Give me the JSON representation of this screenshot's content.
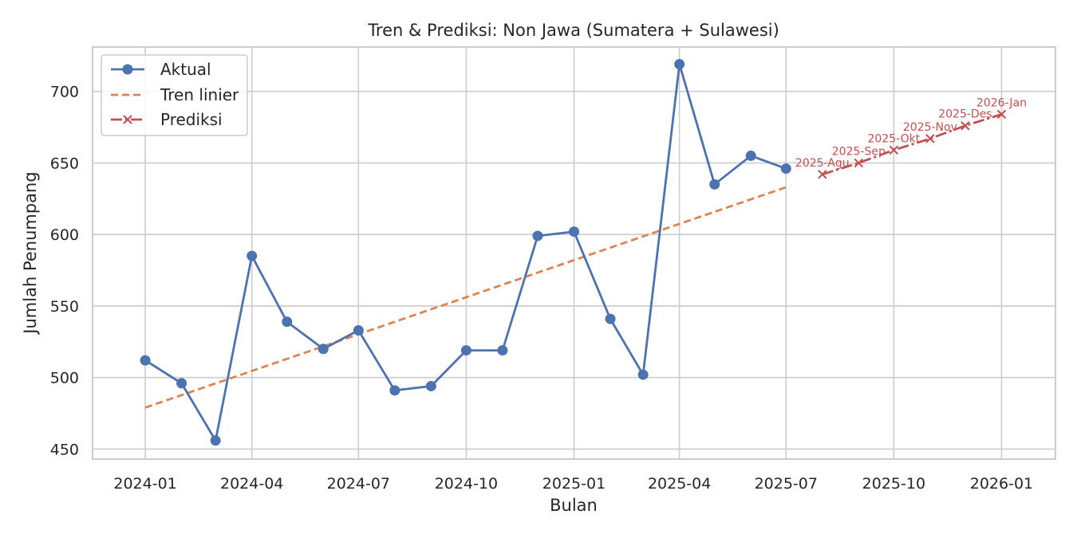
{
  "chart_data": {
    "type": "line",
    "title": "Tren & Prediksi: Non Jawa (Sumatera + Sulawesi)",
    "xlabel": "Bulan",
    "ylabel": "Jumlah Penumpang",
    "x_tick_labels": [
      "2024-01",
      "2024-04",
      "2024-07",
      "2024-10",
      "2025-01",
      "2025-04",
      "2025-07",
      "2025-10",
      "2026-01"
    ],
    "x_range": [
      "2023-11-17",
      "2026-02-16"
    ],
    "ylim": [
      443,
      731
    ],
    "y_ticks": [
      450,
      500,
      550,
      600,
      650,
      700
    ],
    "grid": true,
    "legend_position": "top-left",
    "colors": {
      "actual": "#4c72b0",
      "trend": "#dd8452",
      "prediction": "#c44e52"
    },
    "series": [
      {
        "name": "Aktual",
        "style": "solid-circle",
        "x": [
          "2024-01",
          "2024-02",
          "2024-03",
          "2024-04",
          "2024-05",
          "2024-06",
          "2024-07",
          "2024-08",
          "2024-09",
          "2024-10",
          "2024-11",
          "2024-12",
          "2025-01",
          "2025-02",
          "2025-03",
          "2025-04",
          "2025-05",
          "2025-06",
          "2025-07"
        ],
        "values": [
          512,
          496,
          456,
          585,
          539,
          520,
          533,
          491,
          494,
          519,
          519,
          599,
          602,
          541,
          502,
          719,
          635,
          655,
          646
        ]
      },
      {
        "name": "Tren linier",
        "style": "dashed",
        "x": [
          "2024-01",
          "2025-07"
        ],
        "values": [
          479,
          633
        ]
      },
      {
        "name": "Prediksi",
        "style": "dashdot-x",
        "x": [
          "2025-08",
          "2025-09",
          "2025-10",
          "2025-11",
          "2025-12",
          "2026-01"
        ],
        "values": [
          642,
          650,
          659,
          667,
          676,
          684
        ],
        "point_labels": [
          "2025-Agu",
          "2025-Sep",
          "2025-Okt",
          "2025-Nov",
          "2025-Des",
          "2026-Jan"
        ]
      }
    ]
  }
}
